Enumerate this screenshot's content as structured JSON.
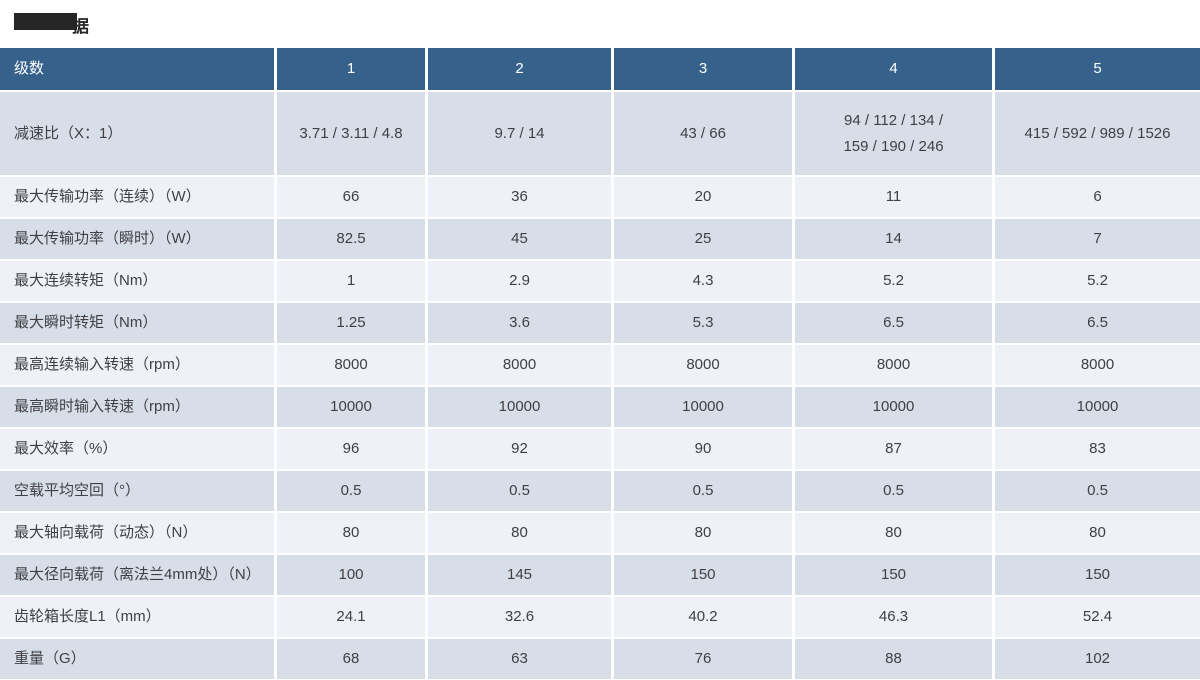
{
  "title": {
    "visible_text": "据",
    "redaction": "black-box"
  },
  "colors": {
    "header_bg": "#35618a",
    "header_text": "#ffffff",
    "row_dark": "#d8dee8",
    "row_light": "#eef1f8",
    "body_text": "#3f3f44",
    "redaction_black": "#262626"
  },
  "table": {
    "header": [
      "级数",
      "1",
      "2",
      "3",
      "4",
      "5"
    ],
    "rows": [
      {
        "label": "减速比（X：1）",
        "values": [
          "3.71 / 3.11 / 4.8",
          "9.7 / 14",
          "43 / 66",
          "94 / 112 / 134 /\n159 / 190 / 246",
          "415 / 592 / 989 / 1526"
        ]
      },
      {
        "label": "最大传输功率（连续）（W）",
        "values": [
          "66",
          "36",
          "20",
          "11",
          "6"
        ]
      },
      {
        "label": "最大传输功率（瞬时）（W）",
        "values": [
          "82.5",
          "45",
          "25",
          "14",
          "7"
        ]
      },
      {
        "label": "最大连续转矩（Nm）",
        "values": [
          "1",
          "2.9",
          "4.3",
          "5.2",
          "5.2"
        ]
      },
      {
        "label": "最大瞬时转矩（Nm）",
        "values": [
          "1.25",
          "3.6",
          "5.3",
          "6.5",
          "6.5"
        ]
      },
      {
        "label": "最高连续输入转速（rpm）",
        "values": [
          "8000",
          "8000",
          "8000",
          "8000",
          "8000"
        ]
      },
      {
        "label": "最高瞬时输入转速（rpm）",
        "values": [
          "10000",
          "10000",
          "10000",
          "10000",
          "10000"
        ]
      },
      {
        "label": "最大效率（%）",
        "values": [
          "96",
          "92",
          "90",
          "87",
          "83"
        ]
      },
      {
        "label": "空载平均空回（°）",
        "values": [
          "0.5",
          "0.5",
          "0.5",
          "0.5",
          "0.5"
        ]
      },
      {
        "label": "最大轴向载荷（动态）（N）",
        "values": [
          "80",
          "80",
          "80",
          "80",
          "80"
        ]
      },
      {
        "label": "最大径向载荷（离法兰4mm处）（N）",
        "values": [
          "100",
          "145",
          "150",
          "150",
          "150"
        ]
      },
      {
        "label": "齿轮箱长度L1（mm）",
        "values": [
          "24.1",
          "32.6",
          "40.2",
          "46.3",
          "52.4"
        ]
      },
      {
        "label": "重量（G）",
        "values": [
          "68",
          "63",
          "76",
          "88",
          "102"
        ]
      }
    ]
  }
}
